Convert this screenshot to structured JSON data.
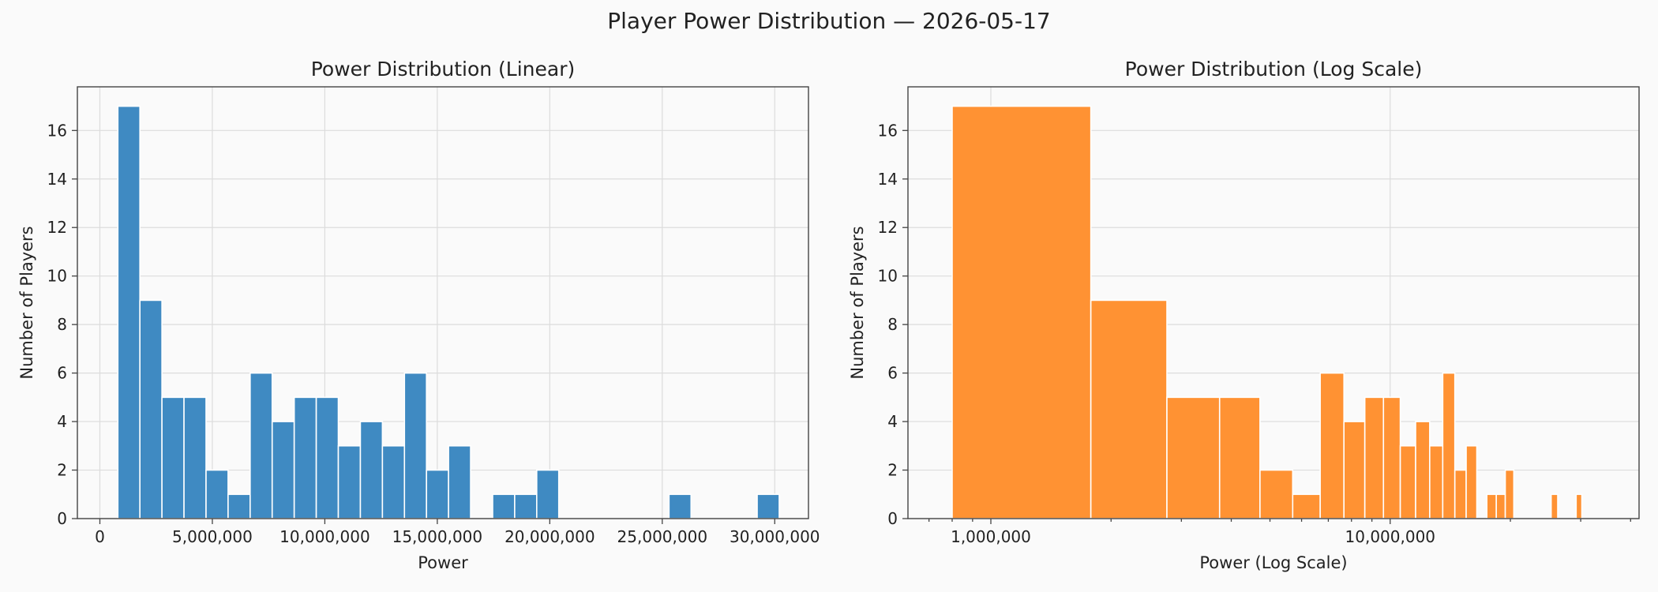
{
  "suptitle": "Player Power Distribution — 2026-05-17",
  "colors": {
    "linear": "#3f8ac2",
    "log": "#ff9233"
  },
  "chart_data": [
    {
      "type": "bar",
      "title": "Power Distribution (Linear)",
      "xlabel": "Power",
      "ylabel": "Number of Players",
      "xlim": [
        -1000000,
        31500000
      ],
      "ylim": [
        0,
        17.8
      ],
      "xticks": [
        0,
        5000000,
        10000000,
        15000000,
        20000000,
        25000000,
        30000000
      ],
      "xtick_labels": [
        "0",
        "5,000,000",
        "10,000,000",
        "15,000,000",
        "20,000,000",
        "25,000,000",
        "30,000,000"
      ],
      "yticks": [
        0,
        2,
        4,
        6,
        8,
        10,
        12,
        14,
        16
      ],
      "grid": true,
      "bin_edges": [
        800000,
        1780000,
        2760000,
        3740000,
        4720000,
        5700000,
        6680000,
        7660000,
        8640000,
        9620000,
        10600000,
        11580000,
        12560000,
        13540000,
        14520000,
        15500000,
        16480000,
        17460000,
        18440000,
        19420000,
        20400000,
        21380000,
        22360000,
        23340000,
        24320000,
        25300000,
        26280000,
        27260000,
        28240000,
        29220000,
        30200000
      ],
      "counts": [
        17,
        9,
        5,
        5,
        2,
        1,
        6,
        4,
        5,
        5,
        3,
        4,
        3,
        6,
        2,
        3,
        0,
        1,
        1,
        2,
        0,
        0,
        0,
        0,
        0,
        1,
        0,
        0,
        0,
        1
      ]
    },
    {
      "type": "bar",
      "title": "Power Distribution (Log Scale)",
      "xlabel": "Power (Log Scale)",
      "ylabel": "Number of Players",
      "xscale": "log",
      "xlim": [
        620000,
        42000000
      ],
      "ylim": [
        0,
        17.8
      ],
      "xticks": [
        1000000,
        10000000
      ],
      "xtick_labels": [
        "1,000,000",
        "10,000,000"
      ],
      "yticks": [
        0,
        2,
        4,
        6,
        8,
        10,
        12,
        14,
        16
      ],
      "grid": true,
      "bin_edges": [
        800000,
        1780000,
        2760000,
        3740000,
        4720000,
        5700000,
        6680000,
        7660000,
        8640000,
        9620000,
        10600000,
        11580000,
        12560000,
        13540000,
        14520000,
        15500000,
        16480000,
        17460000,
        18440000,
        19420000,
        20400000,
        21380000,
        22360000,
        23340000,
        24320000,
        25300000,
        26280000,
        27260000,
        28240000,
        29220000,
        30200000
      ],
      "counts": [
        17,
        9,
        5,
        5,
        2,
        1,
        6,
        4,
        5,
        5,
        3,
        4,
        3,
        6,
        2,
        3,
        0,
        1,
        1,
        2,
        0,
        0,
        0,
        0,
        0,
        1,
        0,
        0,
        0,
        1
      ]
    }
  ]
}
